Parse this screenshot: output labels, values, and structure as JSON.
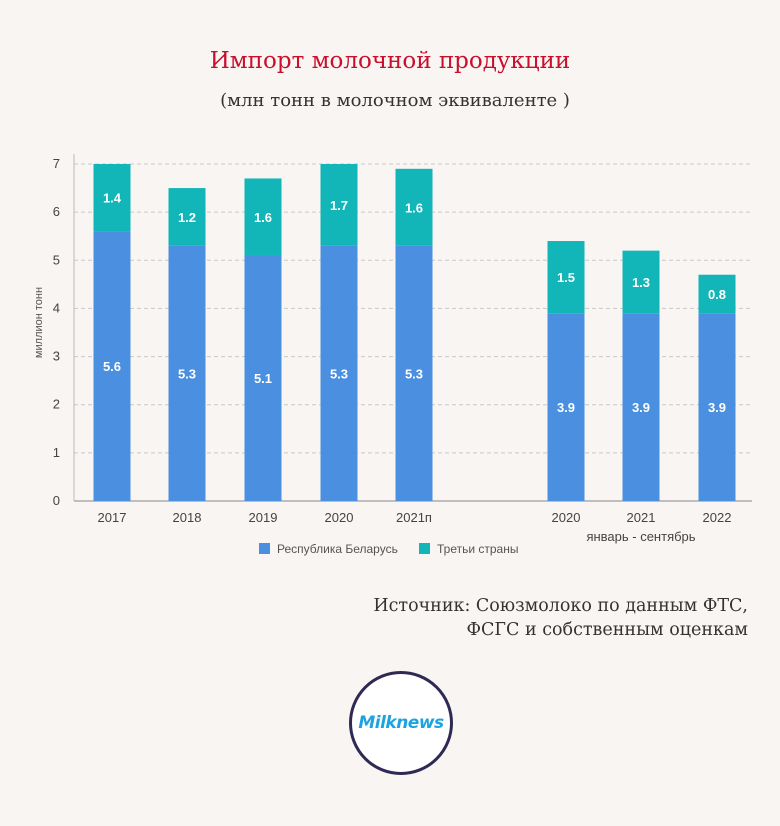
{
  "title": "Импорт молочной продукции",
  "subtitle": "(млн тонн в молочном эквиваленте )",
  "source_line1": "Источник: Союзмолоко по данным ФТС,",
  "source_line2": "ФСГС и собственным оценкам",
  "logo_text": "Milknews",
  "colors": {
    "belarus": "#4a8fe0",
    "third": "#12b5b8",
    "grid": "#c9c9c9",
    "title": "#c8102e"
  },
  "chart_data": {
    "type": "bar",
    "stacked": true,
    "ylabel": "миллион тонн",
    "ylim": [
      0,
      7
    ],
    "yticks": [
      0,
      1,
      2,
      3,
      4,
      5,
      6,
      7
    ],
    "grid": true,
    "legend_position": "bottom",
    "categories": [
      "2017",
      "2018",
      "2019",
      "2020",
      "2021п",
      "2020",
      "2021",
      "2022"
    ],
    "group_label": "январь - сентябрь",
    "group_label_applies_to": [
      "2020",
      "2021",
      "2022"
    ],
    "series": [
      {
        "name": "Республика Беларусь",
        "values": [
          5.6,
          5.3,
          5.1,
          5.3,
          5.3,
          3.9,
          3.9,
          3.9
        ]
      },
      {
        "name": "Третьи страны",
        "values": [
          1.4,
          1.2,
          1.6,
          1.7,
          1.6,
          1.5,
          1.3,
          0.8
        ]
      }
    ]
  }
}
